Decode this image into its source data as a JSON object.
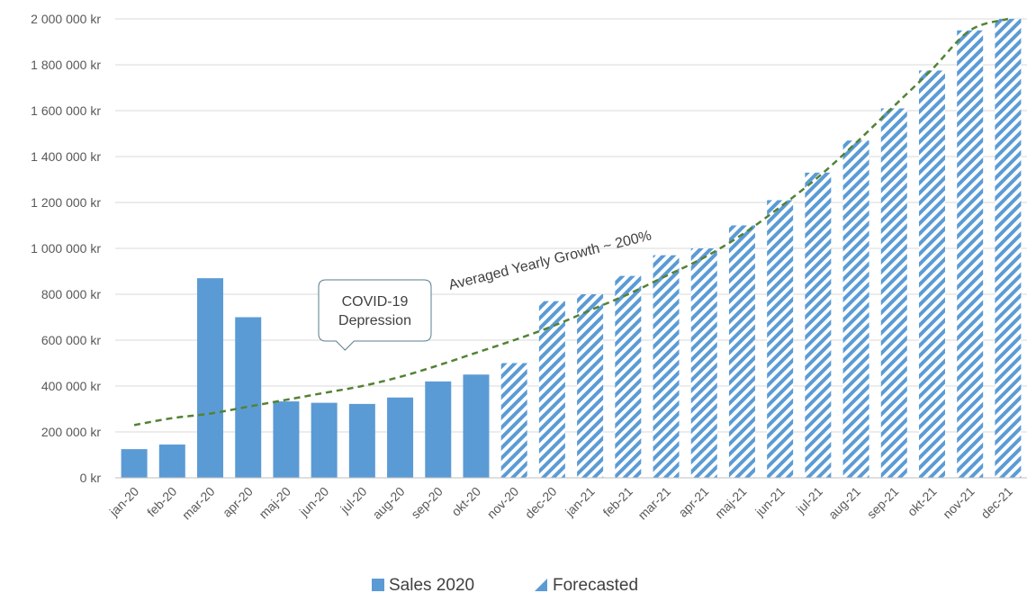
{
  "chart_data": {
    "type": "bar",
    "categories": [
      "jan-20",
      "feb-20",
      "mar-20",
      "apr-20",
      "maj-20",
      "jun-20",
      "jul-20",
      "aug-20",
      "sep-20",
      "okt-20",
      "nov-20",
      "dec-20",
      "jan-21",
      "feb-21",
      "mar-21",
      "apr-21",
      "maj-21",
      "jun-21",
      "jul-21",
      "aug-21",
      "sep-21",
      "okt-21",
      "nov-21",
      "dec-21"
    ],
    "series": [
      {
        "name": "Sales 2020",
        "style": "solid",
        "color": "#5b9bd5",
        "values": [
          125000,
          145000,
          870000,
          700000,
          333000,
          327000,
          322000,
          350000,
          420000,
          450000,
          null,
          null,
          null,
          null,
          null,
          null,
          null,
          null,
          null,
          null,
          null,
          null,
          null,
          null
        ]
      },
      {
        "name": "Forecasted",
        "style": "hatched",
        "color": "#5b9bd5",
        "values": [
          null,
          null,
          null,
          null,
          null,
          null,
          null,
          null,
          null,
          null,
          500000,
          770000,
          800000,
          880000,
          970000,
          1000000,
          1100000,
          1210000,
          1330000,
          1470000,
          1610000,
          1775000,
          1950000,
          2000000
        ]
      }
    ],
    "trendline": {
      "label": "Averaged Yearly Growth ~ 200%",
      "color": "#548235",
      "style": "dashed",
      "values": [
        230000,
        260000,
        280000,
        310000,
        340000,
        370000,
        400000,
        440000,
        490000,
        545000,
        600000,
        660000,
        730000,
        800000,
        880000,
        960000,
        1060000,
        1180000,
        1310000,
        1460000,
        1620000,
        1780000,
        1950000,
        2120000
      ]
    },
    "callout": {
      "lines": [
        "COVID-19",
        "Depression"
      ],
      "category": "jul-20"
    },
    "ylim": [
      0,
      2000000
    ],
    "yticks": [
      0,
      200000,
      400000,
      600000,
      800000,
      1000000,
      1200000,
      1400000,
      1600000,
      1800000,
      2000000
    ],
    "ytick_labels": [
      "0 kr",
      "200 000 kr",
      "400 000 kr",
      "600 000 kr",
      "800 000 kr",
      "1 000 000 kr",
      "1 200 000 kr",
      "1 400 000 kr",
      "1 600 000 kr",
      "1 800 000 kr",
      "2 000 000 kr"
    ],
    "grid": true,
    "legend": "bottom",
    "title": "",
    "xlabel": "",
    "ylabel": ""
  }
}
